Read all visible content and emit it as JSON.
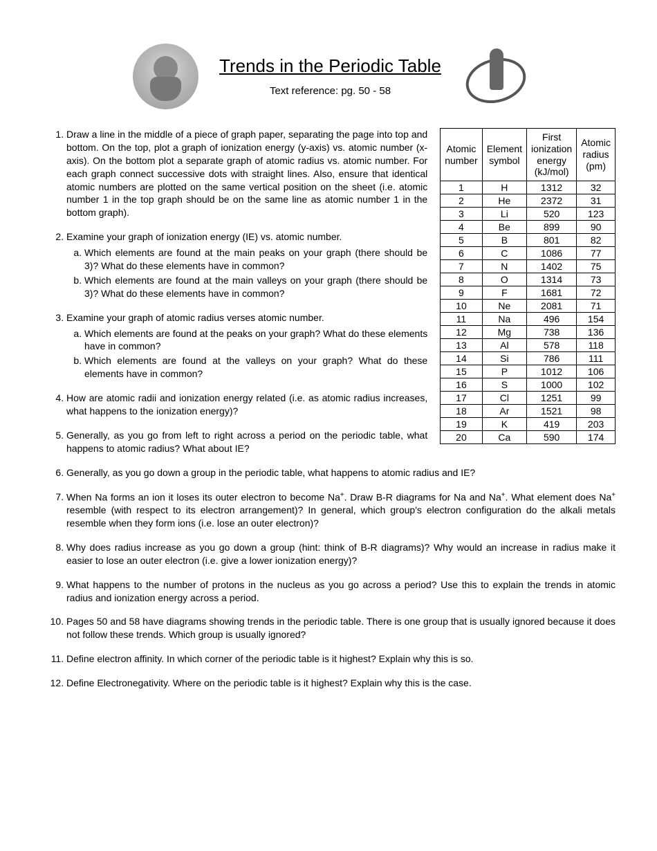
{
  "header": {
    "title": "Trends in the Periodic Table",
    "subtitle": "Text reference: pg. 50 - 58"
  },
  "questions": {
    "q1": "Draw a line in the middle of a piece of graph paper, separating the page into top and bottom. On the top, plot a graph of ionization energy (y-axis) vs. atomic number (x-axis). On the bottom plot a separate graph of atomic radius vs. atomic number. For each graph connect successive dots with straight lines. Also, ensure that identical atomic numbers are plotted on the same vertical position on the sheet (i.e. atomic number 1 in the top graph should be on the same line as atomic number 1 in the bottom graph).",
    "q2": "Examine your graph of ionization energy (IE) vs. atomic number.",
    "q2a": "Which elements are found at the main peaks on your graph (there should be 3)? What do these elements have in common?",
    "q2b": "Which elements are found at the main valleys on your graph (there should be 3)? What do these elements have in common?",
    "q3": "Examine your graph of atomic radius verses atomic number.",
    "q3a": "Which elements are found at the peaks on your graph? What do these elements have in common?",
    "q3b": "Which elements are found at the valleys on your graph? What do these elements have in common?",
    "q4": "How are atomic radii and ionization energy related (i.e. as atomic radius increases, what happens to the ionization energy)?",
    "q5": "Generally, as you go from left to right across a period on the periodic table, what happens to atomic radius? What about IE?",
    "q6": "Generally, as you go down a group in the periodic table, what happens to atomic radius and IE?",
    "q7_a": "When Na forms an ion it loses its outer electron to become Na",
    "q7_b": ". Draw B-R diagrams for Na and Na",
    "q7_c": ". What element does Na",
    "q7_d": " resemble (with respect to its electron arrangement)? In general, which group's electron configuration do the alkali metals resemble when they form ions (i.e. lose an outer electron)?",
    "q8": "Why does radius increase as you go down a group (hint: think of B-R diagrams)? Why would an increase in radius make it easier to lose an outer electron (i.e. give a lower ionization energy)?",
    "q9": "What happens to the number of protons in the nucleus as you go across a period? Use this to explain the trends in atomic radius and ionization energy across a period.",
    "q10": "Pages 50 and 58 have diagrams showing trends in the periodic table. There is one group that is usually ignored because it does not follow these trends. Which group is usually ignored?",
    "q11": "Define electron affinity. In which corner of the periodic table is it highest? Explain why this is so.",
    "q12": "Define Electronegativity. Where on the periodic table is it highest? Explain why this is the case."
  },
  "table": {
    "headers": {
      "c1a": "Atomic",
      "c1b": "number",
      "c2a": "Element",
      "c2b": "symbol",
      "c3a": "First",
      "c3b": "ionization",
      "c3c": "energy",
      "c3d": "(kJ/mol)",
      "c4a": "Atomic",
      "c4b": "radius",
      "c4c": "(pm)"
    },
    "rows": [
      {
        "n": "1",
        "s": "H",
        "ie": "1312",
        "r": "32"
      },
      {
        "n": "2",
        "s": "He",
        "ie": "2372",
        "r": "31"
      },
      {
        "n": "3",
        "s": "Li",
        "ie": "520",
        "r": "123"
      },
      {
        "n": "4",
        "s": "Be",
        "ie": "899",
        "r": "90"
      },
      {
        "n": "5",
        "s": "B",
        "ie": "801",
        "r": "82"
      },
      {
        "n": "6",
        "s": "C",
        "ie": "1086",
        "r": "77"
      },
      {
        "n": "7",
        "s": "N",
        "ie": "1402",
        "r": "75"
      },
      {
        "n": "8",
        "s": "O",
        "ie": "1314",
        "r": "73"
      },
      {
        "n": "9",
        "s": "F",
        "ie": "1681",
        "r": "72"
      },
      {
        "n": "10",
        "s": "Ne",
        "ie": "2081",
        "r": "71"
      },
      {
        "n": "11",
        "s": "Na",
        "ie": "496",
        "r": "154"
      },
      {
        "n": "12",
        "s": "Mg",
        "ie": "738",
        "r": "136"
      },
      {
        "n": "13",
        "s": "Al",
        "ie": "578",
        "r": "118"
      },
      {
        "n": "14",
        "s": "Si",
        "ie": "786",
        "r": "111"
      },
      {
        "n": "15",
        "s": "P",
        "ie": "1012",
        "r": "106"
      },
      {
        "n": "16",
        "s": "S",
        "ie": "1000",
        "r": "102"
      },
      {
        "n": "17",
        "s": "Cl",
        "ie": "1251",
        "r": "99"
      },
      {
        "n": "18",
        "s": "Ar",
        "ie": "1521",
        "r": "98"
      },
      {
        "n": "19",
        "s": "K",
        "ie": "419",
        "r": "203"
      },
      {
        "n": "20",
        "s": "Ca",
        "ie": "590",
        "r": "174"
      }
    ]
  }
}
